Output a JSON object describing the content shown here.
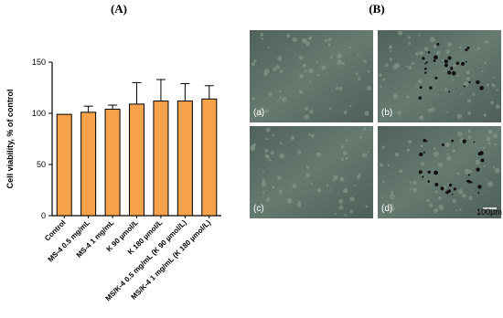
{
  "chart_data": {
    "type": "bar",
    "categories": [
      "Control",
      "MS-4 0.5 mg/mL",
      "MS-4 1 mg/mL",
      "K 90 µmol/L",
      "K 180 µmol/L",
      "MS/K-4 0.5 mg/mL (K 90 µmol/L)",
      "MS/K-4 1 mg/mL (K 180 µmol/L)"
    ],
    "values": [
      99,
      101,
      104,
      109,
      112,
      112,
      114
    ],
    "errors": [
      0,
      6,
      4,
      21,
      21,
      17,
      13
    ],
    "color": "#f5a24b",
    "ylabel": "Cell viability, % of control",
    "ylim": [
      0,
      150
    ],
    "yticks": [
      0,
      50,
      100,
      150
    ]
  },
  "panel_labels": [
    "(A)",
    "(B)"
  ],
  "images": [
    {
      "label": "(a)"
    },
    {
      "label": "(b)"
    },
    {
      "label": "(c)"
    },
    {
      "label": "(d)"
    }
  ],
  "scale_bar": "100µm"
}
